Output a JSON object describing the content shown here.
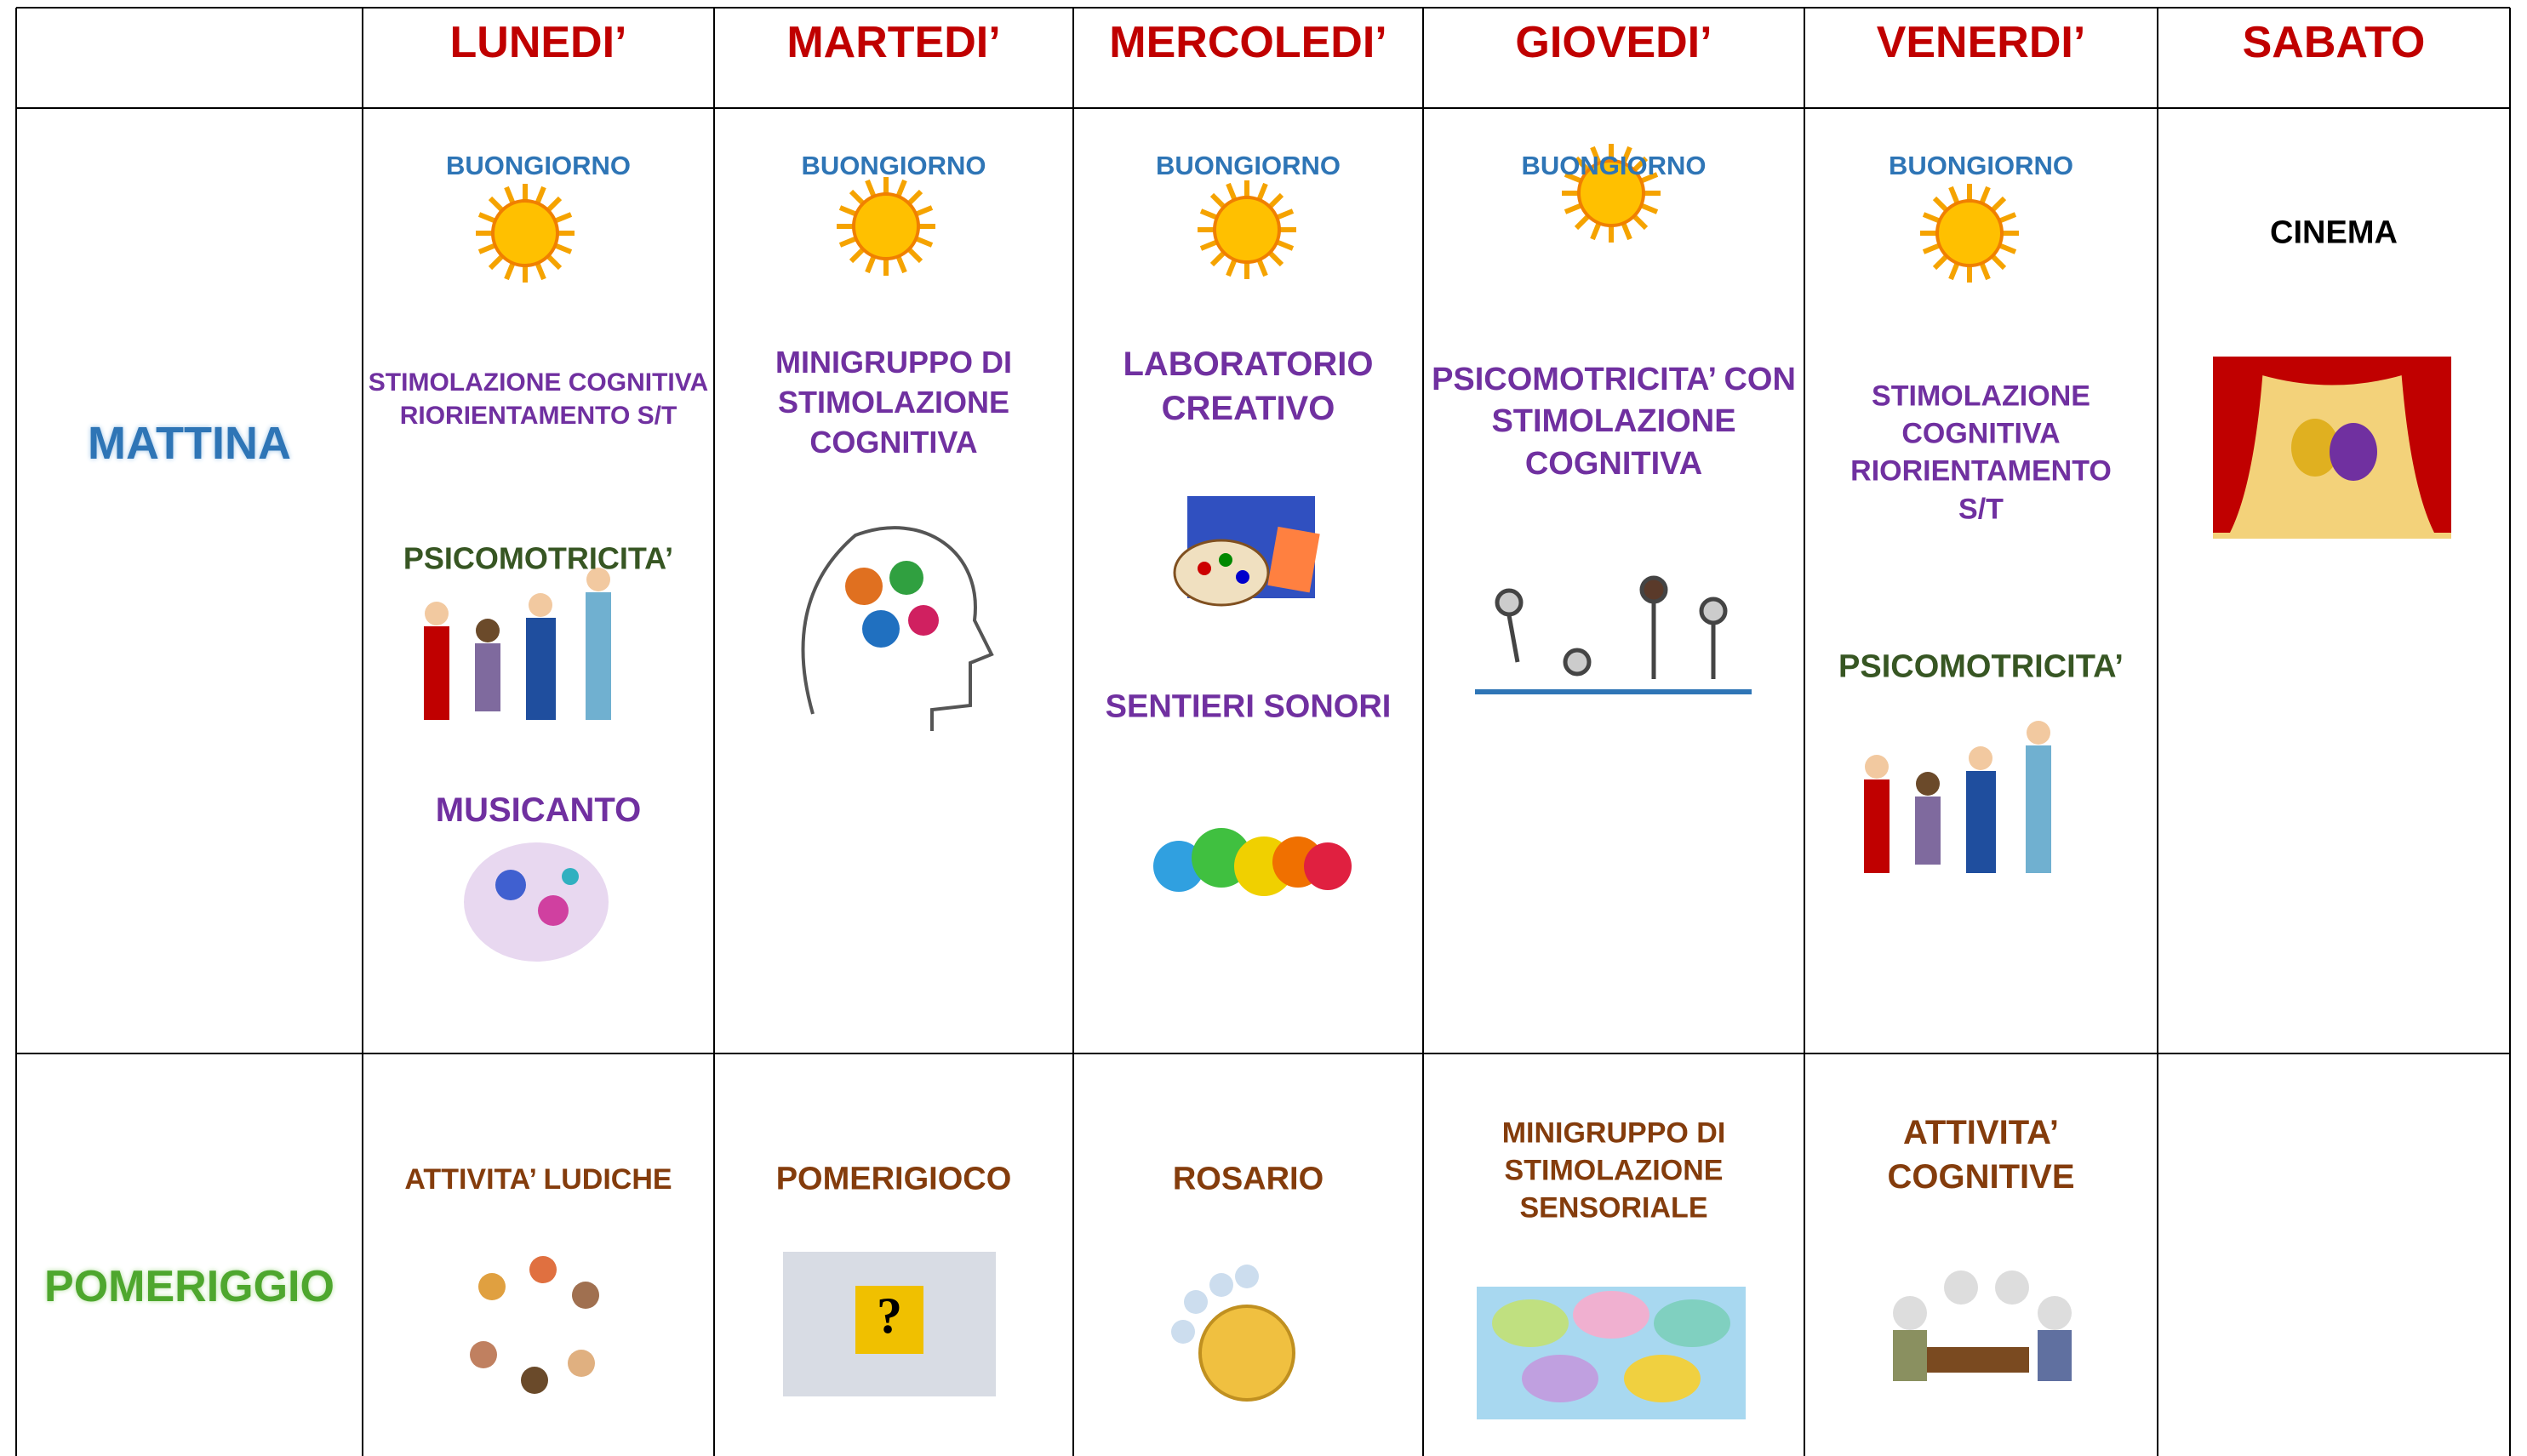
{
  "header": {
    "days": [
      "LUNEDI’",
      "MARTEDI’",
      "MERCOLEDI’",
      "GIOVEDI’",
      "VENERDI’",
      "SABATO"
    ]
  },
  "rows": [
    {
      "label": "MATTINA",
      "cells": [
        [
          "BUONGIORNO",
          "STIMOLAZIONE COGNITIVA RIORIENTAMENTO S/T",
          "PSICOMOTRICITA’",
          "MUSICANTO"
        ],
        [
          "BUONGIORNO",
          "MINIGRUPPO DI STIMOLAZIONE COGNITIVA"
        ],
        [
          "BUONGIORNO",
          "LABORATORIO CREATIVO",
          "SENTIERI SONORI"
        ],
        [
          "BUONGIORNO",
          "PSICOMOTRICITA’ CON STIMOLAZIONE COGNITIVA"
        ],
        [
          "BUONGIORNO",
          "STIMOLAZIONE COGNITIVA RIORIENTAMENTO S/T",
          "PSICOMOTRICITA’"
        ],
        [
          "CINEMA"
        ]
      ]
    },
    {
      "label": "POMERIGGIO",
      "cells": [
        [
          "ATTIVITA’ LUDICHE"
        ],
        [
          "POMERIGIOCO"
        ],
        [
          "ROSARIO"
        ],
        [
          "MINIGRUPPO DI STIMOLAZIONE SENSORIALE"
        ],
        [
          "ATTIVITA’ COGNITIVE"
        ],
        []
      ]
    }
  ]
}
